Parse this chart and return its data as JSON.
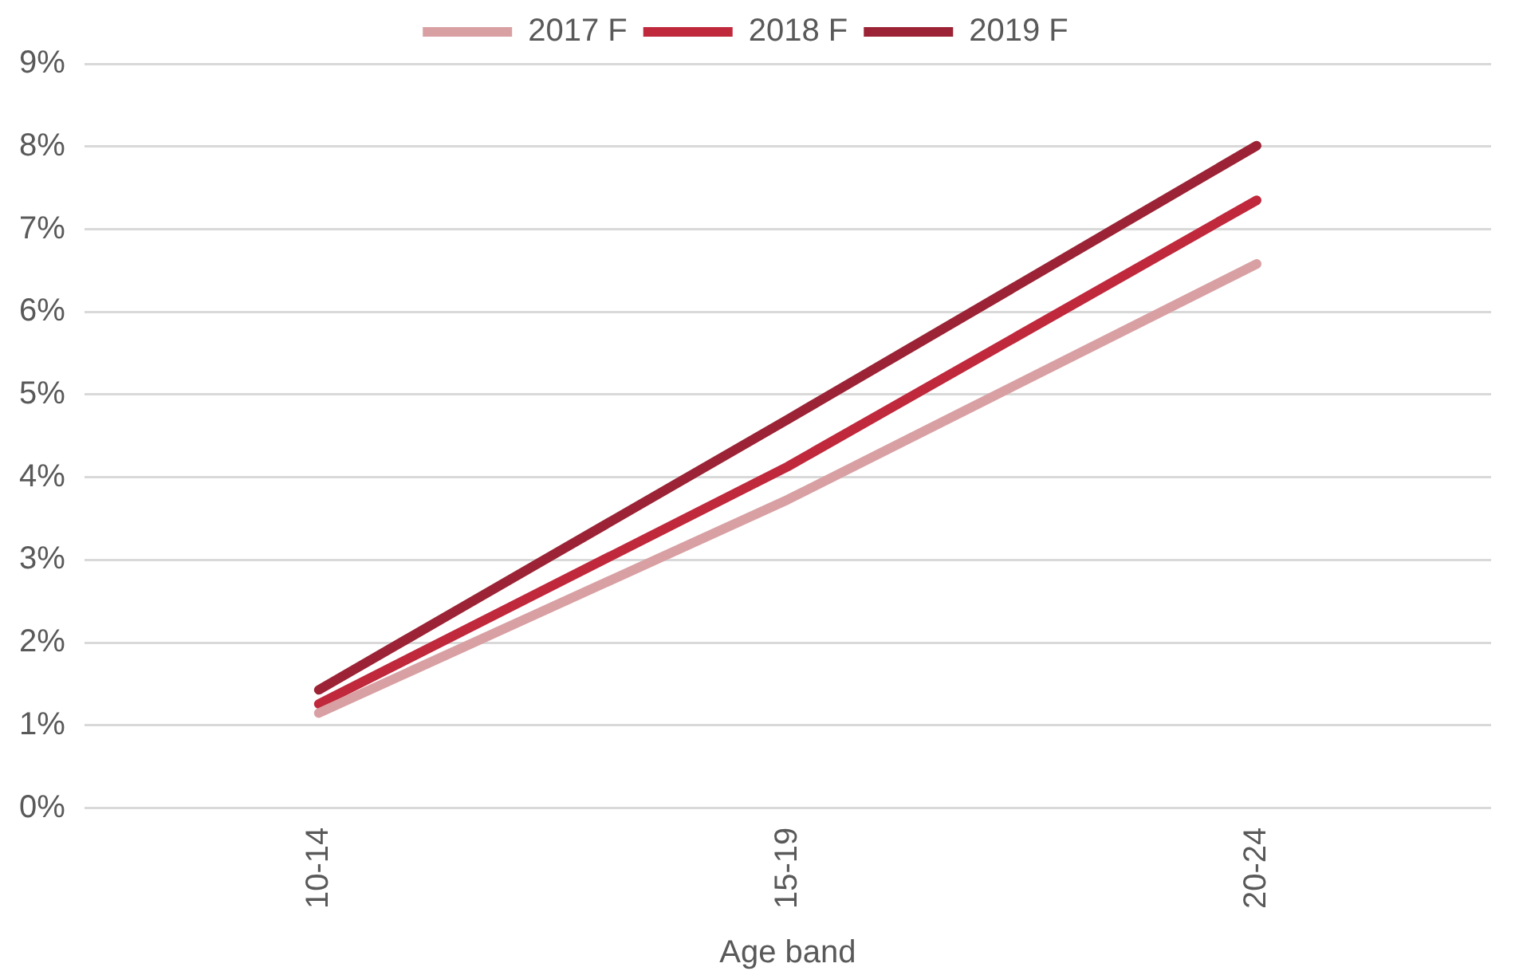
{
  "chart_data": {
    "type": "line",
    "xlabel": "Age band",
    "categories": [
      "10-14",
      "15-19",
      "20-24"
    ],
    "series": [
      {
        "name": "2017 F",
        "color": "#d9a0a3",
        "values": [
          1.15,
          3.73,
          6.58
        ]
      },
      {
        "name": "2018 F",
        "color": "#c0283c",
        "values": [
          1.26,
          4.13,
          7.35
        ]
      },
      {
        "name": "2019 F",
        "color": "#9b2335",
        "values": [
          1.43,
          4.7,
          8.01
        ]
      }
    ],
    "ylim": [
      0,
      9
    ],
    "yticks": [
      {
        "value": 0,
        "label": "0%"
      },
      {
        "value": 1,
        "label": "1%"
      },
      {
        "value": 2,
        "label": "2%"
      },
      {
        "value": 3,
        "label": "3%"
      },
      {
        "value": 4,
        "label": "4%"
      },
      {
        "value": 5,
        "label": "5%"
      },
      {
        "value": 6,
        "label": "6%"
      },
      {
        "value": 7,
        "label": "7%"
      },
      {
        "value": 8,
        "label": "8%"
      },
      {
        "value": 9,
        "label": "9%"
      }
    ],
    "grid": "y",
    "legend": "top",
    "marker": "none",
    "line_style": "solid"
  }
}
